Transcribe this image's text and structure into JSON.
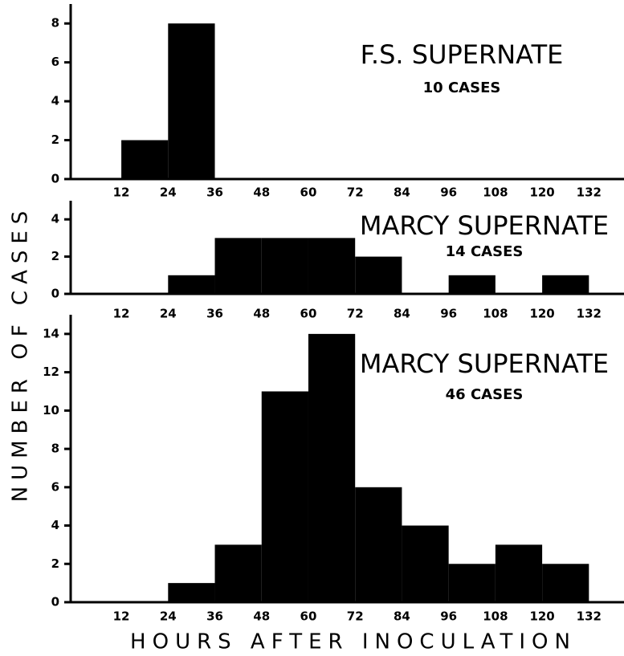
{
  "axis_labels": {
    "y": "NUMBER OF CASES",
    "x": "HOURS AFTER INOCULATION"
  },
  "chart_data": [
    {
      "type": "histogram",
      "title": "F.S. SUPERNATE",
      "subtitle": "10 CASES",
      "color": "#000000",
      "bins": [
        12,
        24,
        36
      ],
      "counts": [
        2,
        8
      ],
      "xlim": [
        -1,
        141
      ],
      "xticks": [
        12,
        24,
        36,
        48,
        60,
        72,
        84,
        96,
        108,
        120,
        132
      ],
      "ylim": [
        0,
        9
      ],
      "yticks": [
        0,
        2,
        4,
        6,
        8
      ]
    },
    {
      "type": "histogram",
      "title": "MARCY SUPERNATE",
      "subtitle": "14 CASES",
      "color": "#000000",
      "bins": [
        24,
        36,
        48,
        60,
        72,
        84,
        96,
        108,
        120,
        132
      ],
      "counts": [
        1,
        3,
        3,
        3,
        2,
        0,
        1,
        0,
        1
      ],
      "xlim": [
        -1,
        141
      ],
      "xticks": [
        12,
        24,
        36,
        48,
        60,
        72,
        84,
        96,
        108,
        120,
        132
      ],
      "ylim": [
        0,
        5
      ],
      "yticks": [
        0,
        2,
        4
      ]
    },
    {
      "type": "histogram",
      "title": "MARCY SUPERNATE",
      "subtitle": "46 CASES",
      "color": "#000000",
      "bins": [
        24,
        36,
        48,
        60,
        72,
        84,
        96,
        108,
        120,
        132
      ],
      "counts": [
        1,
        3,
        11,
        14,
        6,
        4,
        2,
        3,
        2
      ],
      "xlim": [
        -1,
        141
      ],
      "xticks": [
        12,
        24,
        36,
        48,
        60,
        72,
        84,
        96,
        108,
        120,
        132
      ],
      "ylim": [
        0,
        15
      ],
      "yticks": [
        0,
        2,
        4,
        6,
        8,
        10,
        12,
        14
      ]
    }
  ]
}
